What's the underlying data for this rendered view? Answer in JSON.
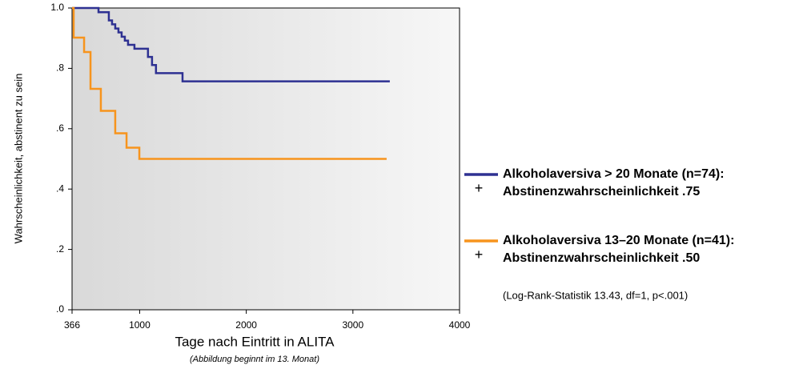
{
  "chart_data": {
    "type": "line",
    "step": true,
    "xlabel": "Tage nach Eintritt in ALITA",
    "xlabel_note": "(Abbildung beginnt im 13. Monat)",
    "ylabel": "Wahrscheinlichkeit, abstinent zu sein",
    "xlim": [
      366,
      4000
    ],
    "ylim": [
      0,
      1
    ],
    "xticks": [
      366,
      1000,
      2000,
      3000,
      4000
    ],
    "yticks": [
      {
        "value": 0,
        "label": ".0"
      },
      {
        "value": 0.2,
        "label": ".2"
      },
      {
        "value": 0.4,
        "label": ".4"
      },
      {
        "value": 0.6,
        "label": ".6"
      },
      {
        "value": 0.8,
        "label": ".8"
      },
      {
        "value": 1.0,
        "label": "1.0"
      }
    ],
    "series": [
      {
        "name": "Alkoholaversiva > 20 Monate (n=74):",
        "summary": "Abstinenzwahrscheinlichkeit .75",
        "color": "#2e3192",
        "marker_color": "#6b6bd6",
        "x": [
          366,
          614,
          711,
          741,
          771,
          801,
          831,
          861,
          891,
          951,
          1078,
          1116,
          1153,
          1402,
          3346
        ],
        "values": [
          1.0,
          0.986,
          0.959,
          0.946,
          0.932,
          0.919,
          0.905,
          0.892,
          0.878,
          0.865,
          0.838,
          0.811,
          0.784,
          0.757,
          0.757
        ]
      },
      {
        "name": "Alkoholaversiva 13–20 Monate (n=41):",
        "summary": "Abstinenzwahrscheinlichkeit .50",
        "color": "#f7941d",
        "marker_color": "#f5d000",
        "x": [
          366,
          381,
          479,
          539,
          636,
          771,
          877,
          997,
          3316
        ],
        "values": [
          1.0,
          0.902,
          0.854,
          0.732,
          0.659,
          0.585,
          0.537,
          0.5,
          0.5
        ]
      }
    ],
    "annotation": "(Log-Rank-Statistik 13.43, df=1, p<.001)"
  }
}
